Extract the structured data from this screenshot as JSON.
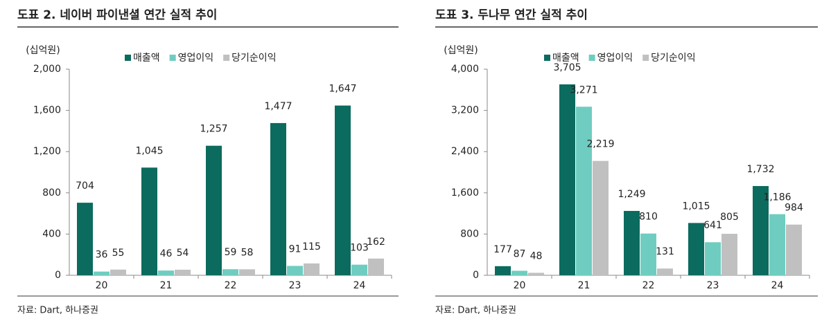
{
  "chart_data": [
    {
      "type": "bar",
      "title": "도표 2. 네이버 파이낸셜 연간 실적 추이",
      "unit": "(십억원)",
      "source": "자료: Dart, 하나증권",
      "categories": [
        "20",
        "21",
        "22",
        "23",
        "24"
      ],
      "series": [
        {
          "name": "매출액",
          "color": "#0b6b5e",
          "values": [
            704,
            1045,
            1257,
            1477,
            1647
          ],
          "value_labels": [
            "704",
            "1,045",
            "1,257",
            "1,477",
            "1,647"
          ]
        },
        {
          "name": "영업이익",
          "color": "#6ecdc0",
          "values": [
            36,
            46,
            59,
            91,
            103
          ]
        },
        {
          "name": "당기순이익",
          "color": "#c0c0c0",
          "values": [
            55,
            54,
            58,
            115,
            162
          ]
        }
      ],
      "ylim": [
        0,
        2000
      ],
      "yticks": [
        0,
        400,
        800,
        {
          "value": 1200,
          "label": "1,200"
        },
        {
          "value": 1600,
          "label": "1,600"
        },
        {
          "value": 2000,
          "label": "2,000"
        }
      ]
    },
    {
      "type": "bar",
      "title": "도표 3. 두나무 연간 실적 추이",
      "unit": "(십억원)",
      "source": "자료: Dart, 하나증권",
      "categories": [
        "20",
        "21",
        "22",
        "23",
        "24"
      ],
      "series": [
        {
          "name": "매출액",
          "color": "#0b6b5e",
          "values": [
            177,
            3705,
            1249,
            1015,
            1732
          ],
          "value_labels": [
            "177",
            "3,705",
            "1,249",
            "1,015",
            "1,732"
          ]
        },
        {
          "name": "영업이익",
          "color": "#6ecdc0",
          "values": [
            87,
            3271,
            810,
            641,
            1186
          ],
          "value_labels": [
            "87",
            "3,271",
            "810",
            "641",
            "1,186"
          ]
        },
        {
          "name": "당기순이익",
          "color": "#c0c0c0",
          "values": [
            48,
            2219,
            131,
            805,
            984
          ],
          "value_labels": [
            "48",
            "2,219",
            "131",
            "805",
            "984"
          ]
        }
      ],
      "ylim": [
        0,
        4000
      ],
      "yticks": [
        0,
        800,
        {
          "value": 1600,
          "label": "1,600"
        },
        {
          "value": 2400,
          "label": "2,400"
        },
        {
          "value": 3200,
          "label": "3,200"
        },
        {
          "value": 4000,
          "label": "4,000"
        }
      ]
    }
  ]
}
